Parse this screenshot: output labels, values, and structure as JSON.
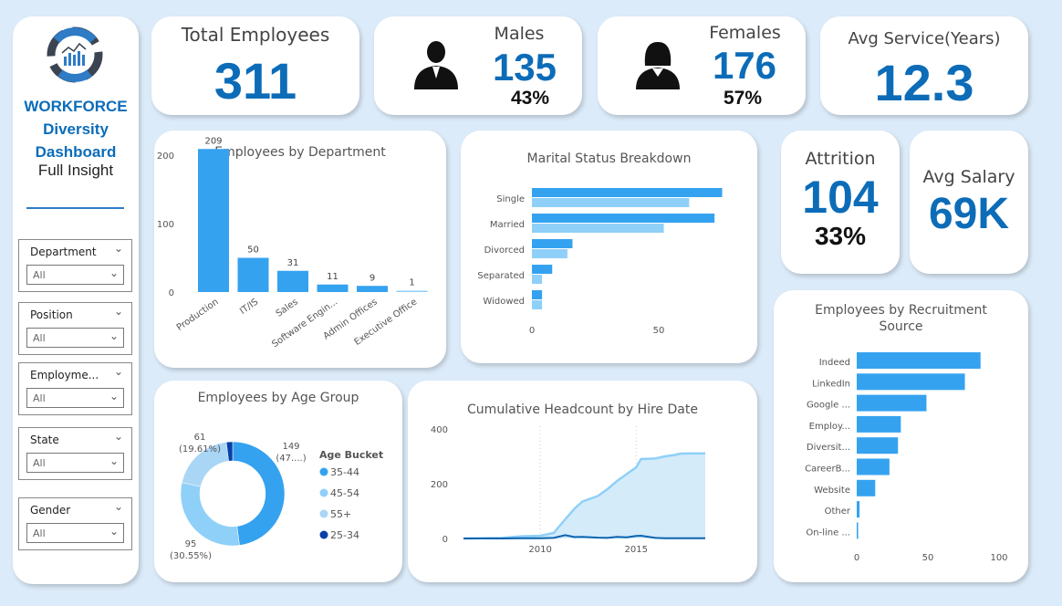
{
  "sidebar": {
    "title_line1": "WORKFORCE",
    "title_line2": "Diversity",
    "title_line3": "Dashboard",
    "subtitle": "Full Insight",
    "filters": [
      {
        "label": "Department",
        "value": "All"
      },
      {
        "label": "Position",
        "value": "All"
      },
      {
        "label": "Employme...",
        "value": "All"
      },
      {
        "label": "State",
        "value": "All"
      },
      {
        "label": "Gender",
        "value": "All"
      }
    ]
  },
  "kpis": {
    "total": {
      "label": "Total Employees",
      "value": "311"
    },
    "males": {
      "label": "Males",
      "value": "135",
      "pct": "43%"
    },
    "females": {
      "label": "Females",
      "value": "176",
      "pct": "57%"
    },
    "service": {
      "label": "Avg Service(Years)",
      "value": "12.3"
    },
    "attrition": {
      "label": "Attrition",
      "value": "104",
      "pct": "33%"
    },
    "salary": {
      "label": "Avg Salary",
      "value": "69K"
    }
  },
  "colors": {
    "accent": "#0c6cb8",
    "bar": "#35a2f0",
    "bar_light": "#8fd0f8",
    "dark": "#0a3fa8",
    "bg": "#dcebf9"
  },
  "chart_data": [
    {
      "id": "dept",
      "type": "bar",
      "title": "Employees by Department",
      "categories": [
        "Production",
        "IT/IS",
        "Sales",
        "Software Engin...",
        "Admin Offices",
        "Executive Office"
      ],
      "values": [
        209,
        50,
        31,
        11,
        9,
        1
      ],
      "ylim": [
        0,
        230
      ],
      "yticks": [
        0,
        100,
        200
      ],
      "data_labels": true
    },
    {
      "id": "marital",
      "type": "bar",
      "orientation": "horizontal",
      "title": "Marital Status Breakdown",
      "categories": [
        "Single",
        "Married",
        "Divorced",
        "Separated",
        "Widowed"
      ],
      "series": [
        {
          "values": [
            75,
            72,
            16,
            8,
            4
          ]
        },
        {
          "values": [
            62,
            52,
            14,
            4,
            4
          ]
        }
      ],
      "xticks": [
        0,
        50
      ],
      "xlim": [
        0,
        78
      ]
    },
    {
      "id": "attrition_age",
      "type": "pie",
      "title": "Employees by Age Group",
      "legend_title": "Age Bucket",
      "legend": "right",
      "categories": [
        "35-44",
        "45-54",
        "55+",
        "25-34"
      ],
      "values": [
        149,
        95,
        61,
        6
      ],
      "labels": [
        "149\n(47....)",
        "95\n(30.55%)",
        "61\n(19.61%)",
        ""
      ],
      "colors": [
        "#35a2f0",
        "#8fd0f8",
        "#a9d6f5",
        "#0a3fa8"
      ]
    },
    {
      "id": "headcount",
      "type": "area",
      "title": "Cumulative Headcount by Hire Date",
      "x": [
        2006,
        2008,
        2009,
        2010,
        2010.7,
        2011.3,
        2011.8,
        2012.2,
        2013,
        2013.5,
        2014,
        2014.5,
        2015,
        2015.25,
        2016,
        2016.5,
        2017,
        2017.3,
        2018.6
      ],
      "series": [
        {
          "values": [
            0,
            2,
            8,
            10,
            20,
            70,
            110,
            135,
            155,
            180,
            210,
            235,
            260,
            290,
            292,
            300,
            305,
            310,
            311
          ]
        },
        {
          "values": [
            0,
            0,
            1,
            1,
            2,
            12,
            5,
            6,
            3,
            2,
            6,
            4,
            9,
            10,
            2,
            1,
            1,
            1,
            1
          ]
        }
      ],
      "ylim": [
        0,
        400
      ],
      "yticks": [
        0,
        200,
        400
      ],
      "xticks": [
        2010,
        2015
      ],
      "xlim": [
        2006,
        2018.6
      ]
    },
    {
      "id": "recruit",
      "type": "bar",
      "orientation": "horizontal",
      "title": "Employees by Recruitment Source",
      "categories": [
        "Indeed",
        "LinkedIn",
        "Google ...",
        "Employ...",
        "Diversit...",
        "CareerB...",
        "Website",
        "Other",
        "On-line ..."
      ],
      "values": [
        87,
        76,
        49,
        31,
        29,
        23,
        13,
        2,
        1
      ],
      "xticks": [
        0,
        50,
        100
      ],
      "xlim": [
        0,
        100
      ]
    }
  ]
}
